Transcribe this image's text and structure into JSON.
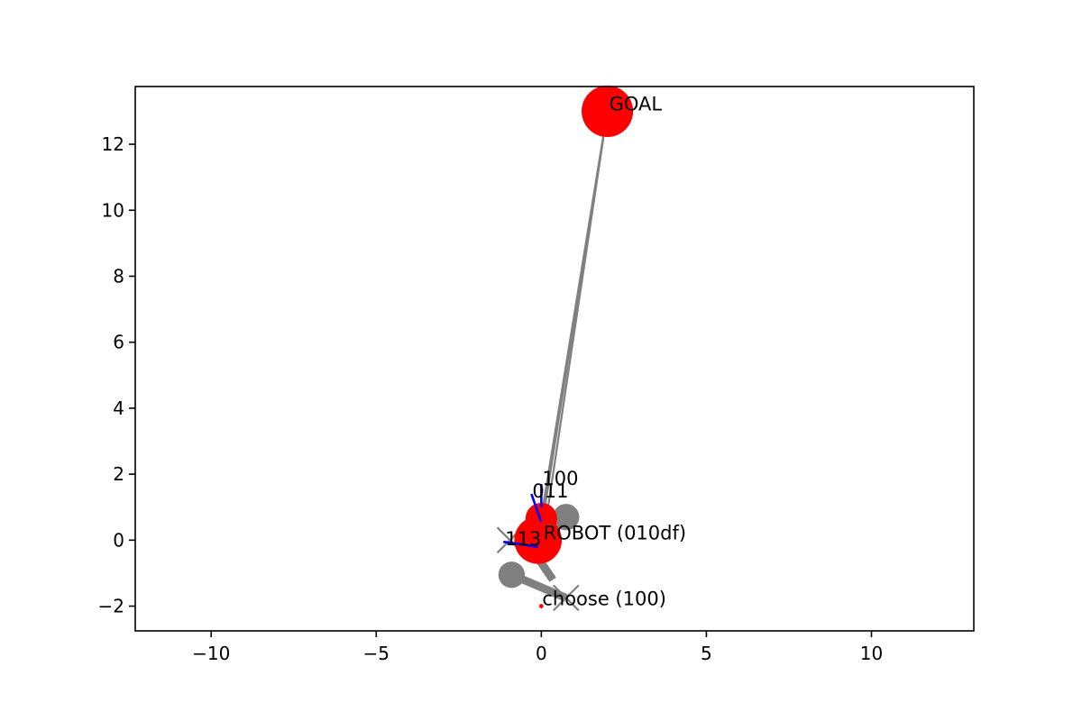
{
  "chart_data": {
    "type": "scatter",
    "title": "",
    "xlabel": "",
    "ylabel": "",
    "xlim": [
      -12.3,
      13.1
    ],
    "ylim": [
      -2.75,
      13.75
    ],
    "grid": false,
    "xticks": [
      -10,
      -5,
      0,
      5,
      10
    ],
    "yticks": [
      -2,
      0,
      2,
      4,
      6,
      8,
      10,
      12
    ],
    "xtick_labels": [
      "−10",
      "−5",
      "0",
      "5",
      "10"
    ],
    "ytick_labels": [
      "−2",
      "0",
      "2",
      "4",
      "6",
      "8",
      "10",
      "12"
    ],
    "colors": {
      "red": "#ff0000",
      "gray": "#808080",
      "blue": "#0000ff",
      "axis": "#000000"
    },
    "goal": {
      "x": 2.0,
      "y": 13.0,
      "label": "GOAL"
    },
    "robots": [
      {
        "x": -0.1,
        "y": 0.0,
        "label": "ROBOT (010df)"
      },
      {
        "x": 0.0,
        "y": 0.65,
        "label": ""
      }
    ],
    "gray_discs": [
      {
        "x": 0.75,
        "y": 0.7
      },
      {
        "x": -0.9,
        "y": -1.05
      }
    ],
    "gray_crosses": [
      {
        "x": -0.95,
        "y": 0.0
      },
      {
        "x": 0.75,
        "y": -1.75
      }
    ],
    "gray_lines": [
      {
        "x1": -0.9,
        "y1": -1.05,
        "x2": 0.75,
        "y2": -1.75
      },
      {
        "x1": -0.3,
        "y1": -0.25,
        "x2": 0.35,
        "y2": -1.2
      },
      {
        "x1": 0.0,
        "y1": 0.7,
        "x2": 2.0,
        "y2": 13.0
      },
      {
        "x1": 0.1,
        "y1": 0.3,
        "x2": 2.0,
        "y2": 13.0
      },
      {
        "x1": -0.05,
        "y1": 0.0,
        "x2": 2.0,
        "y2": 13.0
      }
    ],
    "blue_segments": [
      {
        "x1": -0.3,
        "y1": 1.4,
        "x2": 0.0,
        "y2": 0.55,
        "label": "011"
      },
      {
        "x1": 0.0,
        "y1": 1.7,
        "x2": 0.0,
        "y2": 1.0,
        "label": "100"
      },
      {
        "x1": -1.15,
        "y1": -0.05,
        "x2": -0.1,
        "y2": -0.2,
        "label": "113"
      }
    ],
    "choose": {
      "x": 0.0,
      "y": -2.0,
      "label": "choose (100)"
    }
  }
}
